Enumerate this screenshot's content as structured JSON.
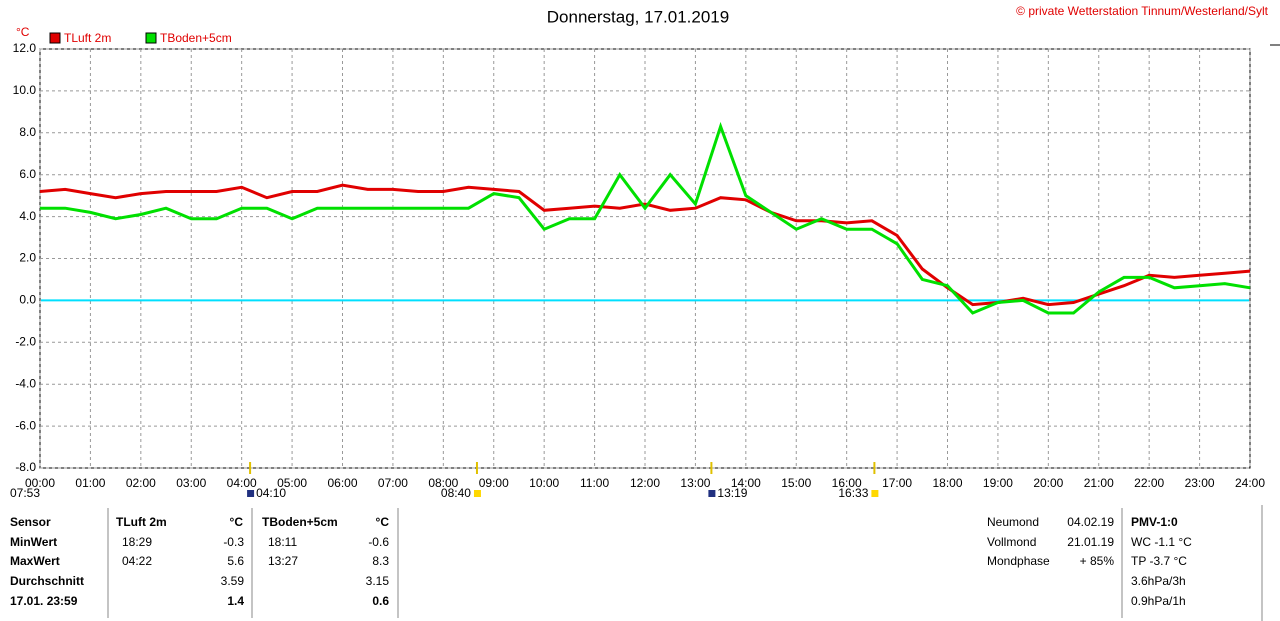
{
  "chart_data": {
    "type": "line",
    "title": "Donnerstag, 17.01.2019",
    "subtitle": "© private Wetterstation Tinnum/Westerland/Sylt",
    "y_label": "°C",
    "x": [
      0,
      0.5,
      1,
      1.5,
      2,
      2.5,
      3,
      3.5,
      4,
      4.5,
      5,
      5.5,
      6,
      6.5,
      7,
      7.5,
      8,
      8.5,
      9,
      9.5,
      10,
      10.5,
      11,
      11.5,
      12,
      12.5,
      13,
      13.5,
      14,
      14.5,
      15,
      15.5,
      16,
      16.5,
      17,
      17.5,
      18,
      18.5,
      19,
      19.5,
      20,
      20.5,
      21,
      21.5,
      22,
      22.5,
      23,
      23.5,
      24
    ],
    "series": [
      {
        "name": "TLuft 2m",
        "color": "#e00000",
        "values": [
          5.2,
          5.3,
          5.1,
          4.9,
          5.1,
          5.2,
          5.2,
          5.2,
          5.4,
          4.9,
          5.2,
          5.2,
          5.5,
          5.3,
          5.3,
          5.2,
          5.2,
          5.4,
          5.3,
          5.2,
          4.3,
          4.4,
          4.5,
          4.4,
          4.6,
          4.3,
          4.4,
          4.9,
          4.8,
          4.2,
          3.8,
          3.8,
          3.7,
          3.8,
          3.1,
          1.5,
          0.6,
          -0.2,
          -0.1,
          0.1,
          -0.2,
          -0.1,
          0.3,
          0.7,
          1.2,
          1.1,
          1.2,
          1.3,
          1.4
        ]
      },
      {
        "name": "TBoden+5cm",
        "color": "#00e000",
        "values": [
          4.4,
          4.4,
          4.2,
          3.9,
          4.1,
          4.4,
          3.9,
          3.9,
          4.4,
          4.4,
          3.9,
          4.4,
          4.4,
          4.4,
          4.4,
          4.4,
          4.4,
          4.4,
          5.1,
          4.9,
          3.4,
          3.9,
          3.9,
          6.0,
          4.4,
          6.0,
          4.6,
          8.3,
          5.0,
          4.2,
          3.4,
          3.9,
          3.4,
          3.4,
          2.7,
          1.0,
          0.7,
          -0.6,
          -0.1,
          0.0,
          -0.6,
          -0.6,
          0.4,
          1.1,
          1.1,
          0.6,
          0.7,
          0.8,
          0.6
        ]
      }
    ],
    "xlim": [
      0,
      24
    ],
    "xticks": [
      {
        "value": 0,
        "label": "00:00"
      },
      {
        "value": 1,
        "label": "01:00"
      },
      {
        "value": 2,
        "label": "02:00"
      },
      {
        "value": 3,
        "label": "03:00"
      },
      {
        "value": 4,
        "label": "04:00"
      },
      {
        "value": 5,
        "label": "05:00"
      },
      {
        "value": 6,
        "label": "06:00"
      },
      {
        "value": 7,
        "label": "07:00"
      },
      {
        "value": 8,
        "label": "08:00"
      },
      {
        "value": 9,
        "label": "09:00"
      },
      {
        "value": 10,
        "label": "10:00"
      },
      {
        "value": 11,
        "label": "11:00"
      },
      {
        "value": 12,
        "label": "12:00"
      },
      {
        "value": 13,
        "label": "13:00"
      },
      {
        "value": 14,
        "label": "14:00"
      },
      {
        "value": 15,
        "label": "15:00"
      },
      {
        "value": 16,
        "label": "16:00"
      },
      {
        "value": 17,
        "label": "17:00"
      },
      {
        "value": 18,
        "label": "18:00"
      },
      {
        "value": 19,
        "label": "19:00"
      },
      {
        "value": 20,
        "label": "20:00"
      },
      {
        "value": 21,
        "label": "21:00"
      },
      {
        "value": 22,
        "label": "22:00"
      },
      {
        "value": 23,
        "label": "23:00"
      },
      {
        "value": 24,
        "label": "24:00"
      }
    ],
    "ylim": [
      -8,
      12
    ],
    "yticks": [
      {
        "value": -8,
        "label": "-8.0"
      },
      {
        "value": -6,
        "label": "-6.0"
      },
      {
        "value": -4,
        "label": "-4.0"
      },
      {
        "value": -2,
        "label": "-2.0"
      },
      {
        "value": 0,
        "label": "0.0"
      },
      {
        "value": 2,
        "label": "2.0"
      },
      {
        "value": 4,
        "label": "4.0"
      },
      {
        "value": 6,
        "label": "6.0"
      },
      {
        "value": 8,
        "label": "8.0"
      },
      {
        "value": 10,
        "label": "10.0"
      },
      {
        "value": 12,
        "label": "12.0"
      }
    ],
    "grid": true,
    "reference_line": {
      "value": 0,
      "color": "#00e0ff"
    },
    "annotations": [
      {
        "text": "07:53"
      },
      {
        "text": "04:10",
        "x": 4.167
      },
      {
        "text": "08:40",
        "x": 8.667
      },
      {
        "text": "13:19",
        "x": 13.317
      },
      {
        "text": "16:33",
        "x": 16.55
      }
    ]
  },
  "stats": {
    "header": [
      "Sensor",
      "TLuft 2m",
      "°C",
      "TBoden+5cm",
      "°C"
    ],
    "rows": [
      [
        "MinWert",
        "18:29",
        "-0.3",
        "18:11",
        "-0.6"
      ],
      [
        "MaxWert",
        "04:22",
        "5.6",
        "13:27",
        "8.3"
      ],
      [
        "Durchschnitt",
        null,
        "3.59",
        null,
        "3.15"
      ],
      [
        "17.01. 23:59",
        null,
        "1.4",
        null,
        "0.6"
      ]
    ]
  },
  "moon": [
    [
      "Neumond",
      "04.02.19"
    ],
    [
      "Vollmond",
      "21.01.19"
    ],
    [
      "Mondphase",
      "+ 85%"
    ]
  ],
  "pmv": [
    "PMV-1:0",
    "WC -1.1 °C",
    "TP -3.7 °C",
    "3.6hPa/3h",
    "0.9hPa/1h"
  ]
}
